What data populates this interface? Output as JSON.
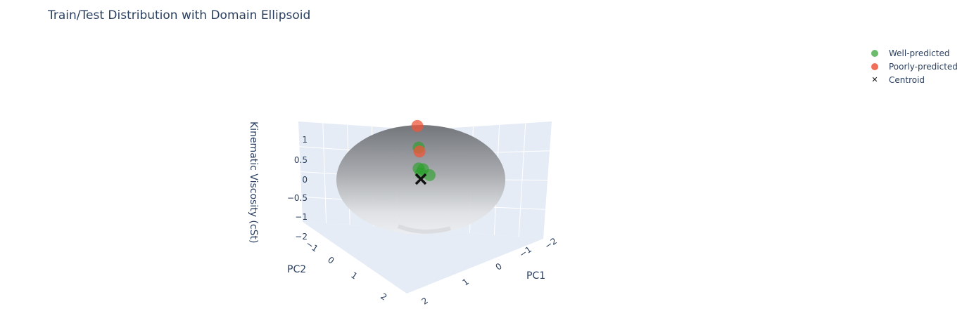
{
  "chart_data": {
    "type": "scatter3d",
    "title": "Train/Test Distribution with Domain Ellipsoid",
    "axes": {
      "x": {
        "title": "PC1",
        "ticks": [
          "−2",
          "−1",
          "0",
          "1",
          "2"
        ],
        "tick_values": [
          -2,
          -1,
          0,
          1,
          2
        ]
      },
      "y": {
        "title": "PC2",
        "ticks": [
          "−1",
          "0",
          "1",
          "2"
        ],
        "tick_values": [
          -1,
          0,
          1,
          2
        ]
      },
      "z": {
        "title": "Kinematic Viscosity (cSt)",
        "ticks": [
          "1",
          "0.5",
          "0",
          "−0.5",
          "−1",
          "−2"
        ],
        "tick_values": [
          1,
          0.5,
          0,
          -0.5,
          -1,
          -2
        ]
      }
    },
    "legend_placement": "top-right",
    "series": [
      {
        "name": "Well-predicted",
        "color": "#2ca02c",
        "points": [
          {
            "x": -0.05,
            "y": 0.0,
            "z": 0.8
          },
          {
            "x": -0.05,
            "y": 0.0,
            "z": 0.27
          },
          {
            "x": 0.05,
            "y": 0.0,
            "z": 0.25
          },
          {
            "x": 0.2,
            "y": 0.0,
            "z": 0.1
          },
          {
            "x": 0.0,
            "y": 0.0,
            "z": 0.15
          }
        ]
      },
      {
        "name": "Poorly-predicted",
        "color": "#ef553b",
        "points": [
          {
            "x": -0.08,
            "y": 0.0,
            "z": 1.35
          },
          {
            "x": -0.03,
            "y": 0.0,
            "z": 0.7
          }
        ]
      },
      {
        "name": "Centroid",
        "color": "#111111",
        "symbol": "x",
        "points": [
          {
            "x": 0.0,
            "y": 0.0,
            "z": 0.0
          }
        ]
      }
    ],
    "ellipsoid": {
      "center": [
        0,
        0,
        0
      ],
      "color": "gray"
    }
  }
}
